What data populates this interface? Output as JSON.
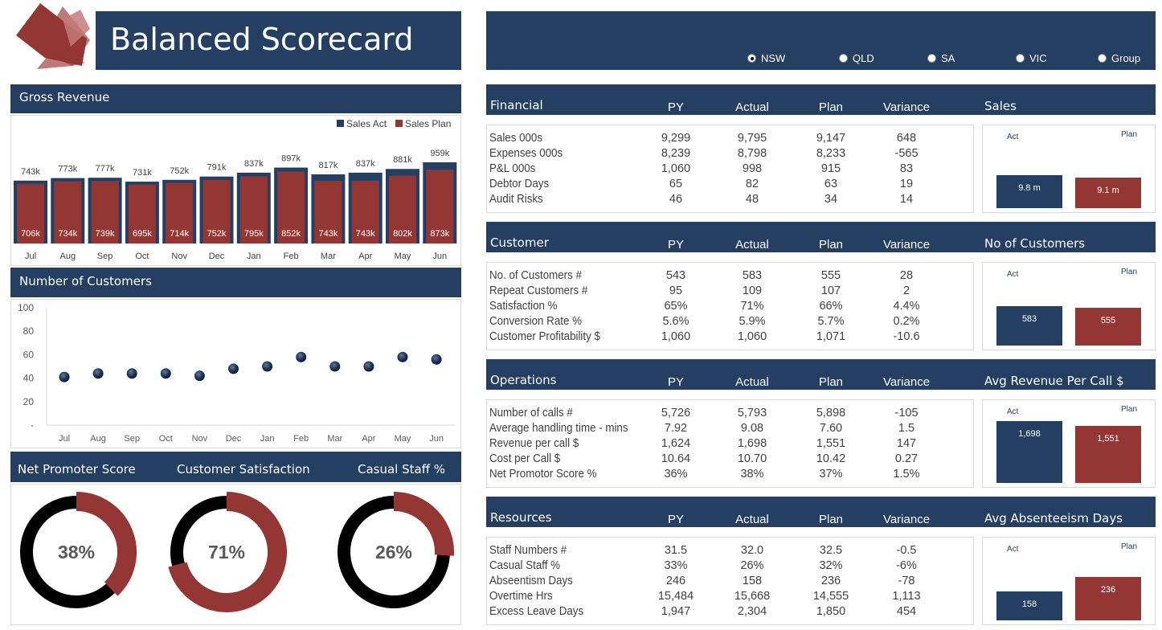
{
  "header": {
    "title": "Balanced Scorecard"
  },
  "region_selector": {
    "options": [
      {
        "label": "NSW",
        "selected": true
      },
      {
        "label": "QLD",
        "selected": false
      },
      {
        "label": "SA",
        "selected": false
      },
      {
        "label": "VIC",
        "selected": false
      },
      {
        "label": "Group",
        "selected": false
      }
    ]
  },
  "colors": {
    "navy": "#243f61",
    "red": "#943634"
  },
  "panels": {
    "gross_revenue": "Gross Revenue",
    "customers": "Number of Customers",
    "nps": "Net Promoter Score",
    "satisfaction": "Customer Satisfaction",
    "casual": "Casual Staff %"
  },
  "chart_data": [
    {
      "type": "bar",
      "categories": [
        "Jul",
        "Aug",
        "Sep",
        "Oct",
        "Nov",
        "Dec",
        "Jan",
        "Feb",
        "Mar",
        "Apr",
        "May",
        "Jun"
      ],
      "series": [
        {
          "name": "Sales Act",
          "values": [
            743,
            773,
            777,
            731,
            752,
            791,
            837,
            897,
            817,
            837,
            881,
            959
          ],
          "labels": [
            "743k",
            "773k",
            "777k",
            "731k",
            "752k",
            "791k",
            "837k",
            "897k",
            "817k",
            "837k",
            "881k",
            "959k"
          ]
        },
        {
          "name": "Sales Plan",
          "values": [
            706,
            734,
            739,
            695,
            714,
            752,
            795,
            852,
            743,
            743,
            802,
            873
          ],
          "labels": [
            "706k",
            "734k",
            "739k",
            "695k",
            "714k",
            "752k",
            "795k",
            "852k",
            "743k",
            "743k",
            "802k",
            "873k"
          ]
        }
      ],
      "legend": "top-right"
    },
    {
      "type": "scatter",
      "categories": [
        "Jul",
        "Aug",
        "Sep",
        "Oct",
        "Nov",
        "Dec",
        "Jan",
        "Feb",
        "Mar",
        "Apr",
        "May",
        "Jun"
      ],
      "values": [
        41,
        44,
        44,
        44,
        42,
        48,
        50,
        58,
        50,
        50,
        58,
        56
      ],
      "ylim": [
        0,
        100
      ],
      "yticks": [
        "-",
        "20",
        "40",
        "60",
        "80",
        "100"
      ]
    },
    {
      "type": "pie",
      "name": "Net Promoter Score",
      "value": 38,
      "label": "38%"
    },
    {
      "type": "pie",
      "name": "Customer Satisfaction",
      "value": 71,
      "label": "71%"
    },
    {
      "type": "pie",
      "name": "Casual Staff %",
      "value": 26,
      "label": "26%"
    }
  ],
  "columns": [
    "PY",
    "Actual",
    "Plan",
    "Variance"
  ],
  "sections": [
    {
      "title": "Financial",
      "chart_title": "Sales",
      "rows": [
        [
          "Sales 000s",
          "9,299",
          "9,795",
          "9,147",
          "648"
        ],
        [
          "Expenses 000s",
          "8,239",
          "8,798",
          "8,233",
          "-565"
        ],
        [
          "P&L 000s",
          "1,060",
          "998",
          "915",
          "83"
        ],
        [
          "Debtor Days",
          "65",
          "82",
          "63",
          "19"
        ],
        [
          "Audit Risks",
          "46",
          "48",
          "34",
          "14"
        ]
      ],
      "mini": {
        "act_label": "Act",
        "plan_label": "Plan",
        "act": 9.8,
        "plan": 9.1,
        "act_text": "9.8 m",
        "plan_text": "9.1 m"
      }
    },
    {
      "title": "Customer",
      "chart_title": "No of Customers",
      "rows": [
        [
          "No. of Customers #",
          "543",
          "583",
          "555",
          "28"
        ],
        [
          "Repeat Customers #",
          "95",
          "109",
          "107",
          "2"
        ],
        [
          "Satisfaction %",
          "65%",
          "71%",
          "66%",
          "4.4%"
        ],
        [
          "Conversion Rate %",
          "5.6%",
          "5.9%",
          "5.7%",
          "0.2%"
        ],
        [
          "Customer Profitability $",
          "1,060",
          "1,060",
          "1,071",
          "-10.6"
        ]
      ],
      "mini": {
        "act_label": "Act",
        "plan_label": "Plan",
        "act": 583,
        "plan": 555,
        "act_text": "583",
        "plan_text": "555"
      }
    },
    {
      "title": "Operations",
      "chart_title": "Avg Revenue Per Call $",
      "rows": [
        [
          "Number of calls #",
          "5,726",
          "5,793",
          "5,898",
          "-105"
        ],
        [
          "Average handling time - mins",
          "7.92",
          "9.08",
          "7.60",
          "1.5"
        ],
        [
          "Revenue per call $",
          "1,624",
          "1,698",
          "1,551",
          "147"
        ],
        [
          "Cost per Call $",
          "10.64",
          "10.70",
          "10.42",
          "0.27"
        ],
        [
          "Net Promotor Score %",
          "36%",
          "38%",
          "37%",
          "1.5%"
        ]
      ],
      "mini": {
        "act_label": "Act",
        "plan_label": "Plan",
        "act": 1698,
        "plan": 1551,
        "act_text": "1,698",
        "plan_text": "1,551"
      }
    },
    {
      "title": "Resources",
      "chart_title": "Avg Absenteeism Days",
      "rows": [
        [
          "Staff Numbers #",
          "31.5",
          "32.0",
          "32.5",
          "-0.5"
        ],
        [
          "Casual Staff %",
          "33%",
          "26%",
          "32%",
          "-6%"
        ],
        [
          "Abseentism Days",
          "246",
          "158",
          "236",
          "-78"
        ],
        [
          "Overtime Hrs",
          "15,484",
          "15,668",
          "14,555",
          "1,113"
        ],
        [
          "Excess Leave Days",
          "1,947",
          "2,304",
          "1,850",
          "454"
        ]
      ],
      "mini": {
        "act_label": "Act",
        "plan_label": "Plan",
        "act": 158,
        "plan": 236,
        "act_text": "158",
        "plan_text": "236"
      }
    }
  ]
}
